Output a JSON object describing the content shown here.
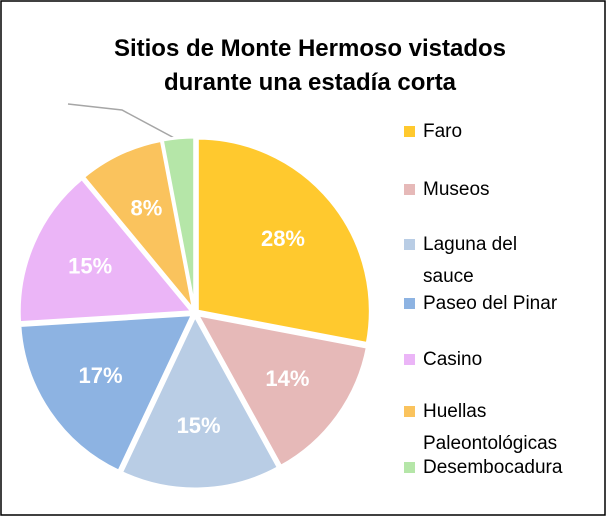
{
  "chart_data": {
    "type": "pie",
    "title": [
      "Sitios de Monte Hermoso vistados",
      "durante una estadía corta"
    ],
    "categories": [
      "Faro",
      "Museos",
      "Laguna del sauce",
      "Paseo del Pinar",
      "Casino",
      "Huellas Paleontológicas",
      "Desembocadura"
    ],
    "values": [
      28,
      14,
      15,
      17,
      15,
      8,
      3
    ],
    "value_labels": [
      "28%",
      "14%",
      "15%",
      "17%",
      "15%",
      "8%",
      null
    ],
    "colors": [
      "#ffc92e",
      "#e6b9b8",
      "#b9cde5",
      "#8db3e2",
      "#ebb5f7",
      "#fac35d",
      "#b5e6a8"
    ],
    "legend": "right"
  }
}
